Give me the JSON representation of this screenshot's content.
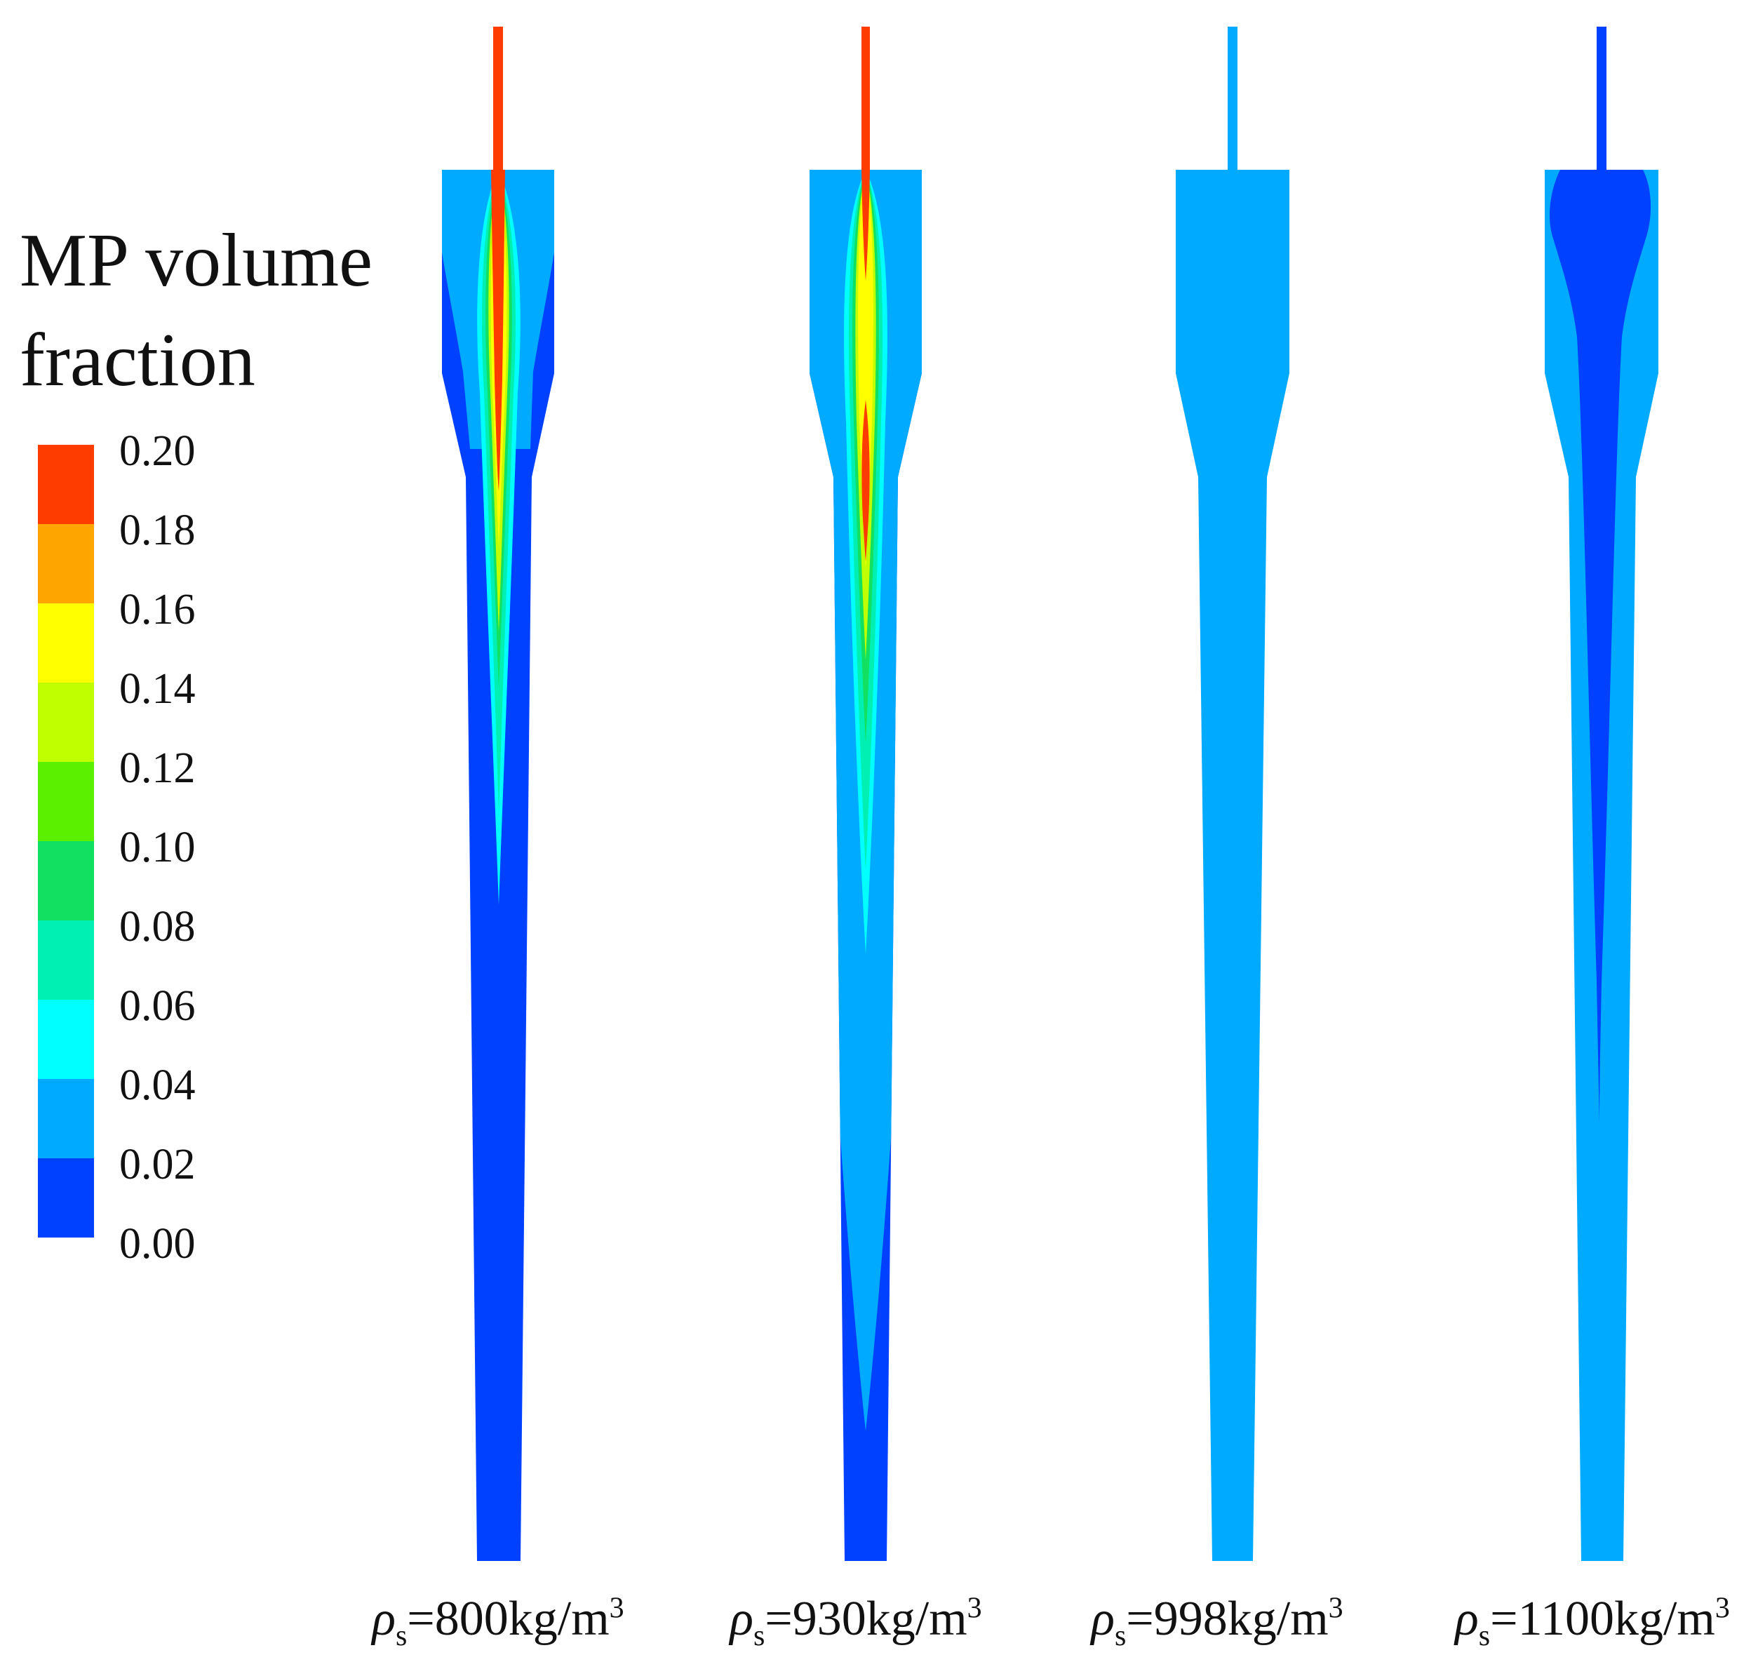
{
  "title": {
    "line1": "MP volume",
    "line2": "fraction"
  },
  "colorbar": {
    "ticks": [
      "0.20",
      "0.18",
      "0.16",
      "0.14",
      "0.12",
      "0.10",
      "0.08",
      "0.06",
      "0.04",
      "0.02",
      "0.00"
    ],
    "colors_top_to_bottom": [
      "#FF3C00",
      "#FFA500",
      "#FFFF00",
      "#C0FF00",
      "#5AF000",
      "#12E060",
      "#00F0B4",
      "#00FFFF",
      "#00AAFF",
      "#0040FF"
    ]
  },
  "panels": [
    {
      "label_symbol": "ρ",
      "label_sub": "s",
      "label_value": "=800kg/m",
      "label_sup": "3"
    },
    {
      "label_symbol": "ρ",
      "label_sub": "s",
      "label_value": "=930kg/m",
      "label_sup": "3"
    },
    {
      "label_symbol": "ρ",
      "label_sub": "s",
      "label_value": "=998kg/m",
      "label_sup": "3"
    },
    {
      "label_symbol": "ρ",
      "label_sub": "s",
      "label_value": "=1100kg/m",
      "label_sup": "3"
    }
  ],
  "chart_data": {
    "type": "contour",
    "title": "MP volume fraction",
    "colorbar_range": [
      0.0,
      0.2
    ],
    "colorbar_step": 0.02,
    "series": [
      {
        "name": "ρs=800kg/m3",
        "background_level": 0.0,
        "core_peak": 0.2
      },
      {
        "name": "ρs=930kg/m3",
        "background_level": 0.02,
        "core_peak": 0.2
      },
      {
        "name": "ρs=998kg/m3",
        "background_level": 0.02,
        "core_peak": 0.02
      },
      {
        "name": "ρs=1100kg/m3",
        "background_level": 0.02,
        "core_peak": 0.0
      }
    ]
  }
}
